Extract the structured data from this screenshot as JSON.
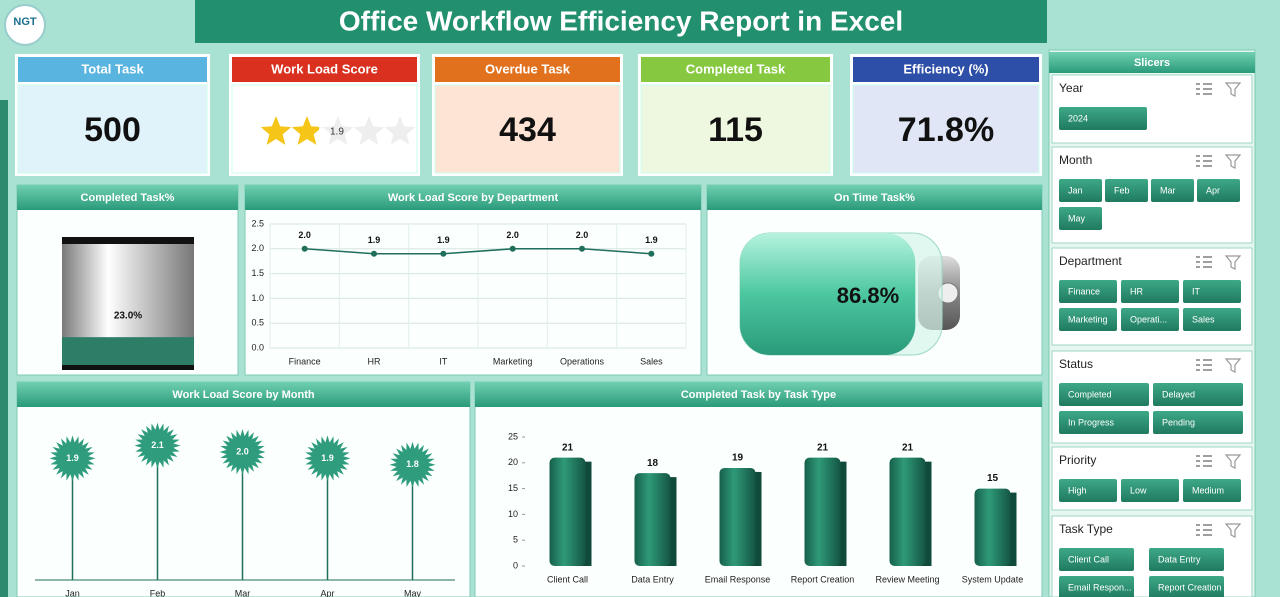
{
  "header": {
    "logo": "NGT",
    "title": "Office Workflow Efficiency Report in Excel"
  },
  "kpis": [
    {
      "label": "Total Task",
      "value": "500"
    },
    {
      "label": "Work Load Score",
      "value": 1.9,
      "scale": [
        0,
        5
      ]
    },
    {
      "label": "Overdue Task",
      "value": "434"
    },
    {
      "label": "Completed Task",
      "value": "115"
    },
    {
      "label": "Efficiency (%)",
      "value": "71.8%"
    }
  ],
  "chart_data": [
    {
      "type": "cylinder",
      "title": "Completed Task%",
      "values": [
        23.0
      ],
      "value_labels": [
        "23.0%"
      ],
      "ylim": [
        0,
        100
      ],
      "color": "#2e7d66"
    },
    {
      "type": "line",
      "title": "Work Load Score by Department",
      "categories": [
        "Finance",
        "HR",
        "IT",
        "Marketing",
        "Operations",
        "Sales"
      ],
      "values": [
        2.0,
        1.9,
        1.9,
        2.0,
        2.0,
        1.9
      ],
      "value_labels": [
        "2.0",
        "1.9",
        "1.9",
        "2.0",
        "2.0",
        "1.9"
      ],
      "color": "#1f6f5c",
      "ylim": [
        0,
        2.5
      ],
      "yticks": [
        {
          "value": 0,
          "label": "0.0"
        },
        {
          "value": 0.5,
          "label": "0.5"
        },
        {
          "value": 1,
          "label": "1.0"
        },
        {
          "value": 1.5,
          "label": "1.5"
        },
        {
          "value": 2,
          "label": "2.0"
        },
        {
          "value": 2.5,
          "label": "2.5"
        }
      ],
      "grid": true
    },
    {
      "type": "battery",
      "title": "On Time Task%",
      "values": [
        86.8
      ],
      "value_labels": [
        "86.8%"
      ],
      "ylim": [
        0,
        100
      ],
      "color": "#3fbf98"
    },
    {
      "type": "lollipop",
      "title": "Work Load Score by Month",
      "categories": [
        "Jan",
        "Feb",
        "Mar",
        "Apr",
        "May"
      ],
      "values": [
        1.9,
        2.1,
        2.0,
        1.9,
        1.8
      ],
      "value_labels": [
        "1.9",
        "2.1",
        "2.0",
        "1.9",
        "1.8"
      ],
      "color": "#2e9c7d",
      "ylim": [
        0,
        2.5
      ]
    },
    {
      "type": "bar",
      "title": "Completed Task by Task Type",
      "categories": [
        "Client Call",
        "Data Entry",
        "Email Response",
        "Report Creation",
        "Review Meeting",
        "System Update"
      ],
      "values": [
        21,
        18,
        19,
        21,
        21,
        15
      ],
      "color": "#1c6b55",
      "ylim": [
        0,
        25
      ],
      "yticks": [
        0,
        5,
        10,
        15,
        20,
        25
      ]
    }
  ],
  "slicers": {
    "title": "Slicers",
    "groups": [
      {
        "title": "Year",
        "items": [
          "2024"
        ]
      },
      {
        "title": "Month",
        "items": [
          "Jan",
          "Feb",
          "Mar",
          "Apr",
          "May"
        ]
      },
      {
        "title": "Department",
        "items": [
          "Finance",
          "HR",
          "IT",
          "Marketing",
          "Operati...",
          "Sales"
        ]
      },
      {
        "title": "Status",
        "items": [
          "Completed",
          "Delayed",
          "In Progress",
          "Pending"
        ]
      },
      {
        "title": "Priority",
        "items": [
          "High",
          "Low",
          "Medium"
        ]
      },
      {
        "title": "Task Type",
        "items": [
          "Client Call",
          "Data Entry",
          "Email Respon...",
          "Report Creation"
        ]
      }
    ]
  }
}
